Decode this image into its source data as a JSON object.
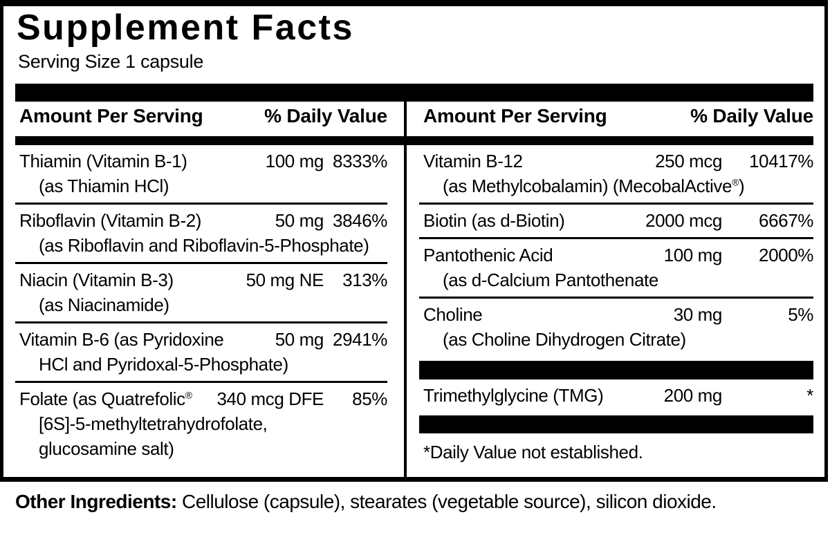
{
  "title": "Supplement Facts",
  "serving_size": "Serving Size 1 capsule",
  "columns": {
    "left": {
      "header": {
        "amount": "Amount Per Serving",
        "daily_value": "% Daily Value"
      },
      "rows": [
        {
          "name": "Thiamin (Vitamin B-1)",
          "amount": "100 mg",
          "dv": "8333%",
          "sub1": "(as Thiamin HCl)"
        },
        {
          "name": "Riboflavin (Vitamin B-2)",
          "amount": "50 mg",
          "dv": "3846%",
          "sub1": "(as Riboflavin and Riboflavin-5-Phosphate)"
        },
        {
          "name": "Niacin (Vitamin B-3)",
          "amount": "50 mg NE",
          "dv": "313%",
          "sub1": "(as Niacinamide)"
        },
        {
          "name": "Vitamin B-6 (as Pyridoxine",
          "amount": "50 mg",
          "dv": "2941%",
          "sub1": "HCl and Pyridoxal-5-Phosphate)"
        },
        {
          "name": "Folate (as Quatrefolic",
          "name_sup": "®",
          "amount": "340 mcg DFE",
          "dv": "85%",
          "sub1": "[6S]-5-methyltetrahydrofolate,",
          "sub2": "glucosamine salt)"
        }
      ]
    },
    "right": {
      "header": {
        "amount": "Amount Per Serving",
        "daily_value": "% Daily Value"
      },
      "rows": [
        {
          "name": "Vitamin B-12",
          "amount": "250 mcg",
          "dv": "10417%",
          "sub1": "(as Methylcobalamin) (MecobalActive",
          "sub1_sup": "®",
          "sub1_post": ")"
        },
        {
          "name": "Biotin (as d-Biotin)",
          "amount": "2000 mcg",
          "dv": "6667%"
        },
        {
          "name": "Pantothenic Acid",
          "amount": "100 mg",
          "dv": "2000%",
          "sub1": "(as d-Calcium Pantothenate"
        },
        {
          "name": "Choline",
          "amount": "30 mg",
          "dv": "5%",
          "sub1": "(as Choline Dihydrogen Citrate)"
        },
        {
          "name": "Trimethylglycine (TMG)",
          "amount": "200 mg",
          "dv": "*"
        }
      ],
      "footnote": "*Daily Value not established."
    }
  },
  "other_ingredients": {
    "label": "Other Ingredients:",
    "text": " Cellulose (capsule), stearates (vegetable source), silicon dioxide."
  },
  "colors": {
    "ink": "#000000",
    "background": "#ffffff"
  }
}
